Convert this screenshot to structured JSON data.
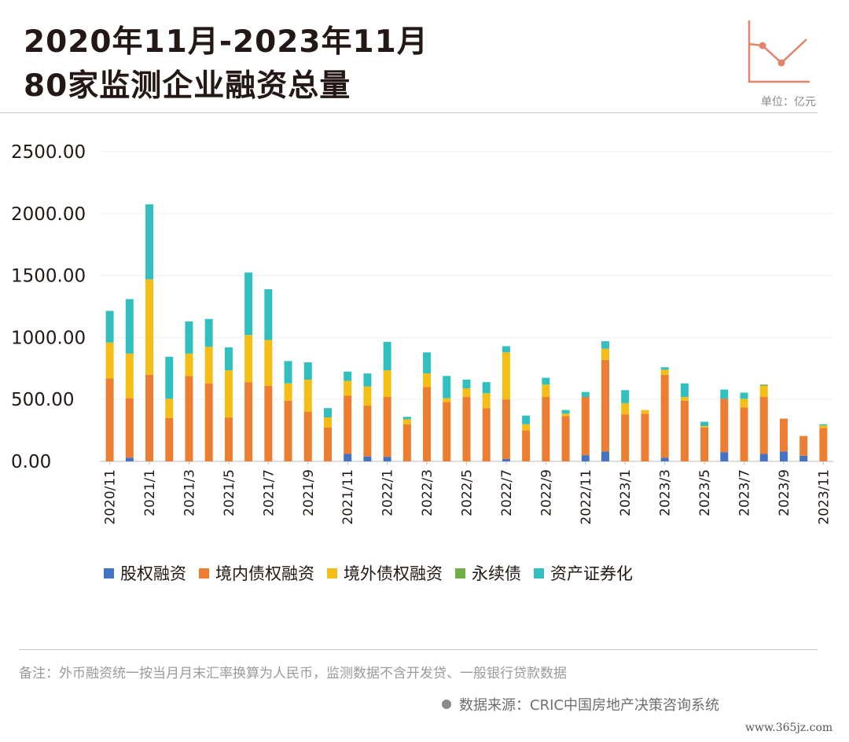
{
  "header": {
    "title_line1": "2020年11月-2023年11月",
    "title_line2": "80家监测企业融资总量",
    "unit": "单位：亿元",
    "icon": "line-chart-icon"
  },
  "colors": {
    "股权融资": "#4472c4",
    "境内债权融资": "#ed7d31",
    "境外债权融资": "#f5be14",
    "永续债": "#70ad47",
    "资产证券化": "#32bfbf",
    "icon": "#e0856a"
  },
  "chart_data": {
    "type": "bar",
    "stacked": true,
    "ylim": [
      0,
      2500
    ],
    "yticks": [
      "0.00",
      "500.00",
      "1000.00",
      "1500.00",
      "2000.00",
      "2500.00"
    ],
    "categories": [
      "2020/11",
      "2020/12",
      "2021/1",
      "2021/2",
      "2021/3",
      "2021/4",
      "2021/5",
      "2021/6",
      "2021/7",
      "2021/8",
      "2021/9",
      "2021/10",
      "2021/11",
      "2021/12",
      "2022/1",
      "2022/2",
      "2022/3",
      "2022/4",
      "2022/5",
      "2022/6",
      "2022/7",
      "2022/8",
      "2022/9",
      "2022/10",
      "2022/11",
      "2022/12",
      "2023/1",
      "2023/2",
      "2023/3",
      "2023/4",
      "2023/5",
      "2023/6",
      "2023/7",
      "2023/8",
      "2023/9",
      "2023/10",
      "2023/11"
    ],
    "xtick_labels": [
      "2020/11",
      "2021/1",
      "2021/3",
      "2021/5",
      "2021/7",
      "2021/9",
      "2021/11",
      "2022/1",
      "2022/3",
      "2022/5",
      "2022/7",
      "2022/9",
      "2022/11",
      "2023/1",
      "2023/3",
      "2023/5",
      "2023/7",
      "2023/9",
      "2023/11"
    ],
    "series": [
      {
        "name": "股权融资",
        "values": [
          0,
          30,
          0,
          0,
          0,
          0,
          0,
          0,
          0,
          0,
          0,
          0,
          60,
          40,
          35,
          0,
          0,
          0,
          0,
          0,
          20,
          0,
          0,
          0,
          50,
          80,
          0,
          0,
          30,
          0,
          0,
          75,
          0,
          60,
          80,
          45,
          0
        ]
      },
      {
        "name": "境内债权融资",
        "values": [
          670,
          480,
          700,
          350,
          690,
          630,
          355,
          640,
          610,
          490,
          400,
          275,
          470,
          410,
          485,
          300,
          600,
          480,
          520,
          430,
          480,
          250,
          520,
          365,
          470,
          740,
          380,
          385,
          670,
          490,
          275,
          430,
          435,
          460,
          265,
          160,
          270
        ]
      },
      {
        "name": "境外债权融资",
        "values": [
          290,
          360,
          770,
          155,
          180,
          295,
          380,
          380,
          370,
          140,
          260,
          80,
          120,
          155,
          215,
          40,
          110,
          30,
          70,
          120,
          380,
          50,
          100,
          20,
          0,
          90,
          90,
          30,
          40,
          30,
          10,
          0,
          70,
          90,
          0,
          0,
          20
        ]
      },
      {
        "name": "永续债",
        "values": [
          0,
          0,
          0,
          0,
          0,
          0,
          0,
          0,
          0,
          0,
          0,
          0,
          0,
          0,
          0,
          0,
          0,
          0,
          0,
          0,
          0,
          0,
          0,
          0,
          0,
          0,
          0,
          0,
          0,
          0,
          0,
          0,
          0,
          10,
          0,
          0,
          0
        ]
      },
      {
        "name": "资产证券化",
        "values": [
          255,
          440,
          605,
          340,
          260,
          225,
          185,
          505,
          410,
          180,
          140,
          75,
          75,
          105,
          230,
          20,
          170,
          180,
          70,
          90,
          50,
          70,
          55,
          30,
          40,
          60,
          105,
          0,
          20,
          110,
          35,
          75,
          50,
          0,
          0,
          0,
          10
        ]
      }
    ]
  },
  "legend": [
    {
      "label": "股权融资"
    },
    {
      "label": "境内债权融资"
    },
    {
      "label": "境外债权融资"
    },
    {
      "label": "永续债"
    },
    {
      "label": "资产证券化"
    }
  ],
  "footer": {
    "note": "备注：外币融资统一按当月月末汇率换算为人民币，监测数据不含开发贷、一般银行贷款数据",
    "source": "数据来源：CRIC中国房地产决策咨询系统",
    "watermark": "www.365jz.com"
  }
}
